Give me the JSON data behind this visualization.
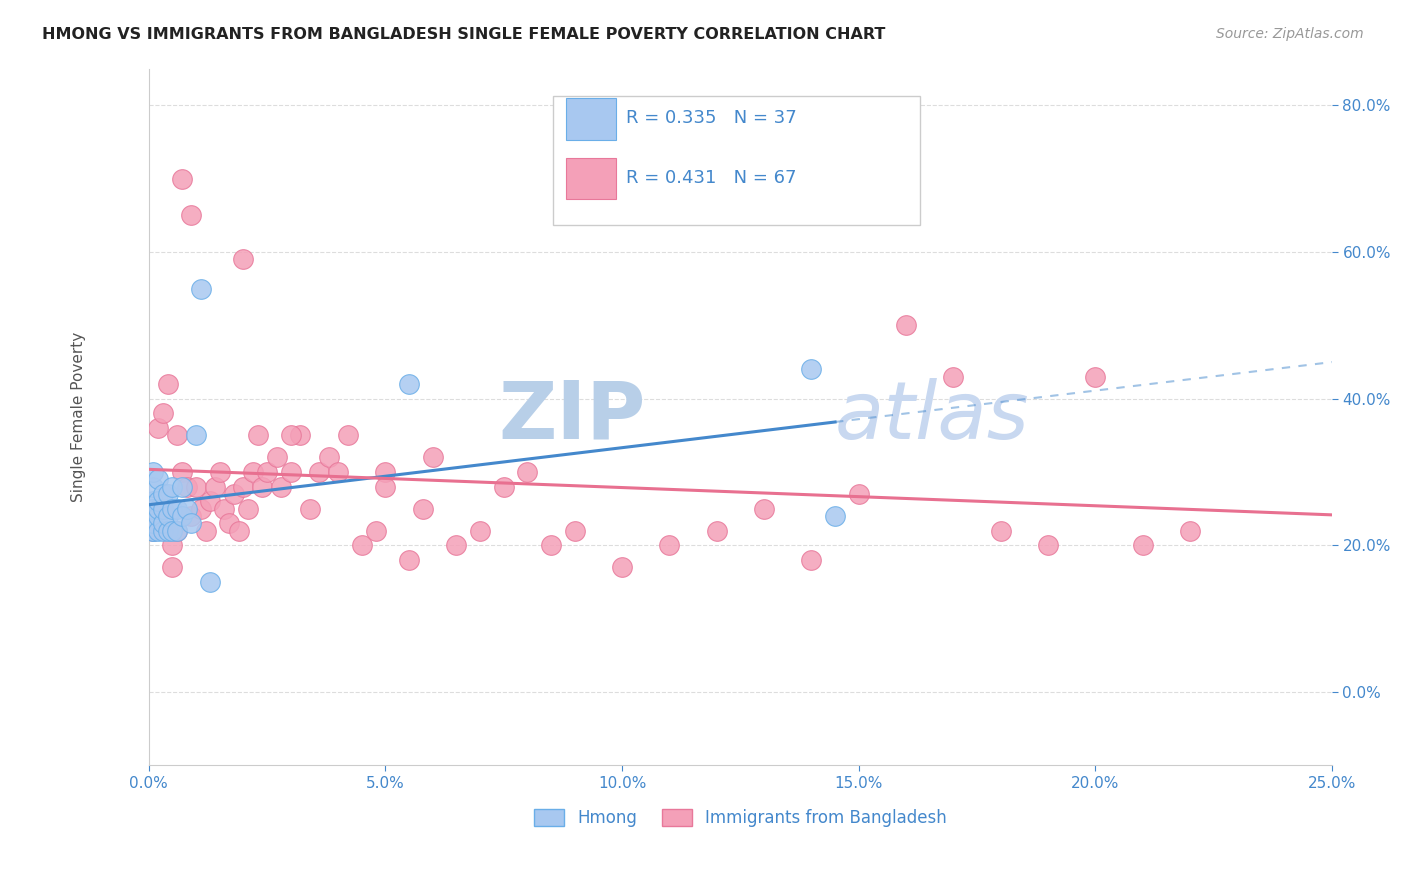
{
  "title": "HMONG VS IMMIGRANTS FROM BANGLADESH SINGLE FEMALE POVERTY CORRELATION CHART",
  "source": "Source: ZipAtlas.com",
  "ylabel": "Single Female Poverty",
  "x_min": 0.0,
  "x_max": 0.25,
  "y_min": -0.1,
  "y_max": 0.85,
  "x_ticks": [
    0.0,
    0.05,
    0.1,
    0.15,
    0.2,
    0.25
  ],
  "x_tick_labels": [
    "0.0%",
    "5.0%",
    "10.0%",
    "15.0%",
    "20.0%",
    "25.0%"
  ],
  "y_ticks": [
    0.0,
    0.2,
    0.4,
    0.6,
    0.8
  ],
  "y_tick_labels": [
    "0.0%",
    "20.0%",
    "40.0%",
    "60.0%",
    "80.0%"
  ],
  "hmong_color": "#a8c8f0",
  "hmong_edge_color": "#6aaee8",
  "bangladesh_color": "#f4a0b8",
  "bangladesh_edge_color": "#e8789a",
  "hmong_line_color": "#4488cc",
  "bangladesh_line_color": "#e87090",
  "legend_R_hmong": "R = 0.335",
  "legend_N_hmong": "N = 37",
  "legend_R_bangladesh": "R = 0.431",
  "legend_N_bangladesh": "N = 67",
  "legend_label_hmong": "Hmong",
  "legend_label_bangladesh": "Immigrants from Bangladesh",
  "hmong_x": [
    0.001,
    0.001,
    0.001,
    0.001,
    0.001,
    0.001,
    0.001,
    0.001,
    0.001,
    0.001,
    0.002,
    0.002,
    0.002,
    0.002,
    0.002,
    0.003,
    0.003,
    0.003,
    0.003,
    0.004,
    0.004,
    0.004,
    0.005,
    0.005,
    0.005,
    0.006,
    0.006,
    0.007,
    0.007,
    0.008,
    0.009,
    0.01,
    0.011,
    0.013,
    0.055,
    0.14,
    0.145
  ],
  "hmong_y": [
    0.22,
    0.23,
    0.24,
    0.25,
    0.26,
    0.22,
    0.23,
    0.25,
    0.28,
    0.3,
    0.22,
    0.24,
    0.25,
    0.26,
    0.29,
    0.22,
    0.23,
    0.25,
    0.27,
    0.22,
    0.24,
    0.27,
    0.22,
    0.25,
    0.28,
    0.22,
    0.25,
    0.24,
    0.28,
    0.25,
    0.23,
    0.35,
    0.55,
    0.15,
    0.42,
    0.44,
    0.24
  ],
  "bangladesh_x": [
    0.001,
    0.002,
    0.003,
    0.003,
    0.004,
    0.005,
    0.006,
    0.006,
    0.007,
    0.008,
    0.009,
    0.01,
    0.011,
    0.012,
    0.013,
    0.014,
    0.015,
    0.016,
    0.017,
    0.018,
    0.019,
    0.02,
    0.021,
    0.022,
    0.023,
    0.024,
    0.025,
    0.027,
    0.028,
    0.03,
    0.032,
    0.034,
    0.036,
    0.038,
    0.04,
    0.042,
    0.045,
    0.048,
    0.05,
    0.055,
    0.058,
    0.06,
    0.065,
    0.07,
    0.075,
    0.08,
    0.085,
    0.09,
    0.1,
    0.11,
    0.12,
    0.13,
    0.14,
    0.15,
    0.16,
    0.17,
    0.18,
    0.19,
    0.2,
    0.21,
    0.22,
    0.005,
    0.007,
    0.009,
    0.02,
    0.03,
    0.05
  ],
  "bangladesh_y": [
    0.22,
    0.36,
    0.25,
    0.38,
    0.42,
    0.2,
    0.35,
    0.22,
    0.3,
    0.28,
    0.24,
    0.28,
    0.25,
    0.22,
    0.26,
    0.28,
    0.3,
    0.25,
    0.23,
    0.27,
    0.22,
    0.28,
    0.25,
    0.3,
    0.35,
    0.28,
    0.3,
    0.32,
    0.28,
    0.3,
    0.35,
    0.25,
    0.3,
    0.32,
    0.3,
    0.35,
    0.2,
    0.22,
    0.3,
    0.18,
    0.25,
    0.32,
    0.2,
    0.22,
    0.28,
    0.3,
    0.2,
    0.22,
    0.17,
    0.2,
    0.22,
    0.25,
    0.18,
    0.27,
    0.5,
    0.43,
    0.22,
    0.2,
    0.43,
    0.2,
    0.22,
    0.17,
    0.7,
    0.65,
    0.59,
    0.35,
    0.28
  ],
  "background_color": "#ffffff",
  "grid_color": "#dddddd",
  "title_color": "#222222",
  "axis_color": "#4488cc",
  "watermark_color": "#d0e8f8",
  "watermark_zip": "ZIP",
  "watermark_atlas": "atlas"
}
